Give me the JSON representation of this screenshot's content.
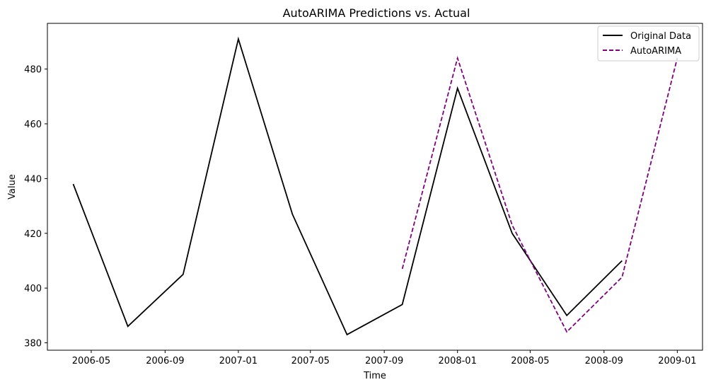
{
  "chart_data": {
    "type": "line",
    "title": "AutoARIMA Predictions vs. Actual",
    "xlabel": "Time",
    "ylabel": "Value",
    "x_axis_type": "date",
    "xlim": [
      "2006-02-17",
      "2009-02-12"
    ],
    "ylim": [
      377.3,
      496.7
    ],
    "x_ticks": [
      "2006-05-01",
      "2006-09-01",
      "2007-01-01",
      "2007-05-01",
      "2007-09-01",
      "2008-01-01",
      "2008-05-01",
      "2008-09-01",
      "2009-01-01"
    ],
    "x_tick_labels": [
      "2006-05",
      "2006-09",
      "2007-01",
      "2007-05",
      "2007-09",
      "2008-01",
      "2008-05",
      "2008-09",
      "2009-01"
    ],
    "y_ticks": [
      380,
      400,
      420,
      440,
      460,
      480
    ],
    "y_tick_labels": [
      "380",
      "400",
      "420",
      "440",
      "460",
      "480"
    ],
    "grid": false,
    "legend_position": "upper right",
    "series": [
      {
        "name": "Original Data",
        "color": "#000000",
        "line_style": "solid",
        "points": [
          {
            "x": "2006-04-01",
            "y": 438
          },
          {
            "x": "2006-07-01",
            "y": 386
          },
          {
            "x": "2006-10-01",
            "y": 405
          },
          {
            "x": "2007-01-01",
            "y": 491
          },
          {
            "x": "2007-04-01",
            "y": 427
          },
          {
            "x": "2007-07-01",
            "y": 383
          },
          {
            "x": "2007-10-01",
            "y": 394
          },
          {
            "x": "2008-01-01",
            "y": 473
          },
          {
            "x": "2008-04-01",
            "y": 420
          },
          {
            "x": "2008-07-01",
            "y": 390
          },
          {
            "x": "2008-10-01",
            "y": 410
          }
        ]
      },
      {
        "name": "AutoARIMA",
        "color": "#800080",
        "line_style": "dashed",
        "points": [
          {
            "x": "2007-10-01",
            "y": 407
          },
          {
            "x": "2008-01-01",
            "y": 484
          },
          {
            "x": "2008-04-01",
            "y": 423
          },
          {
            "x": "2008-07-01",
            "y": 384
          },
          {
            "x": "2008-10-01",
            "y": 404
          },
          {
            "x": "2009-01-01",
            "y": 484
          }
        ]
      }
    ]
  }
}
